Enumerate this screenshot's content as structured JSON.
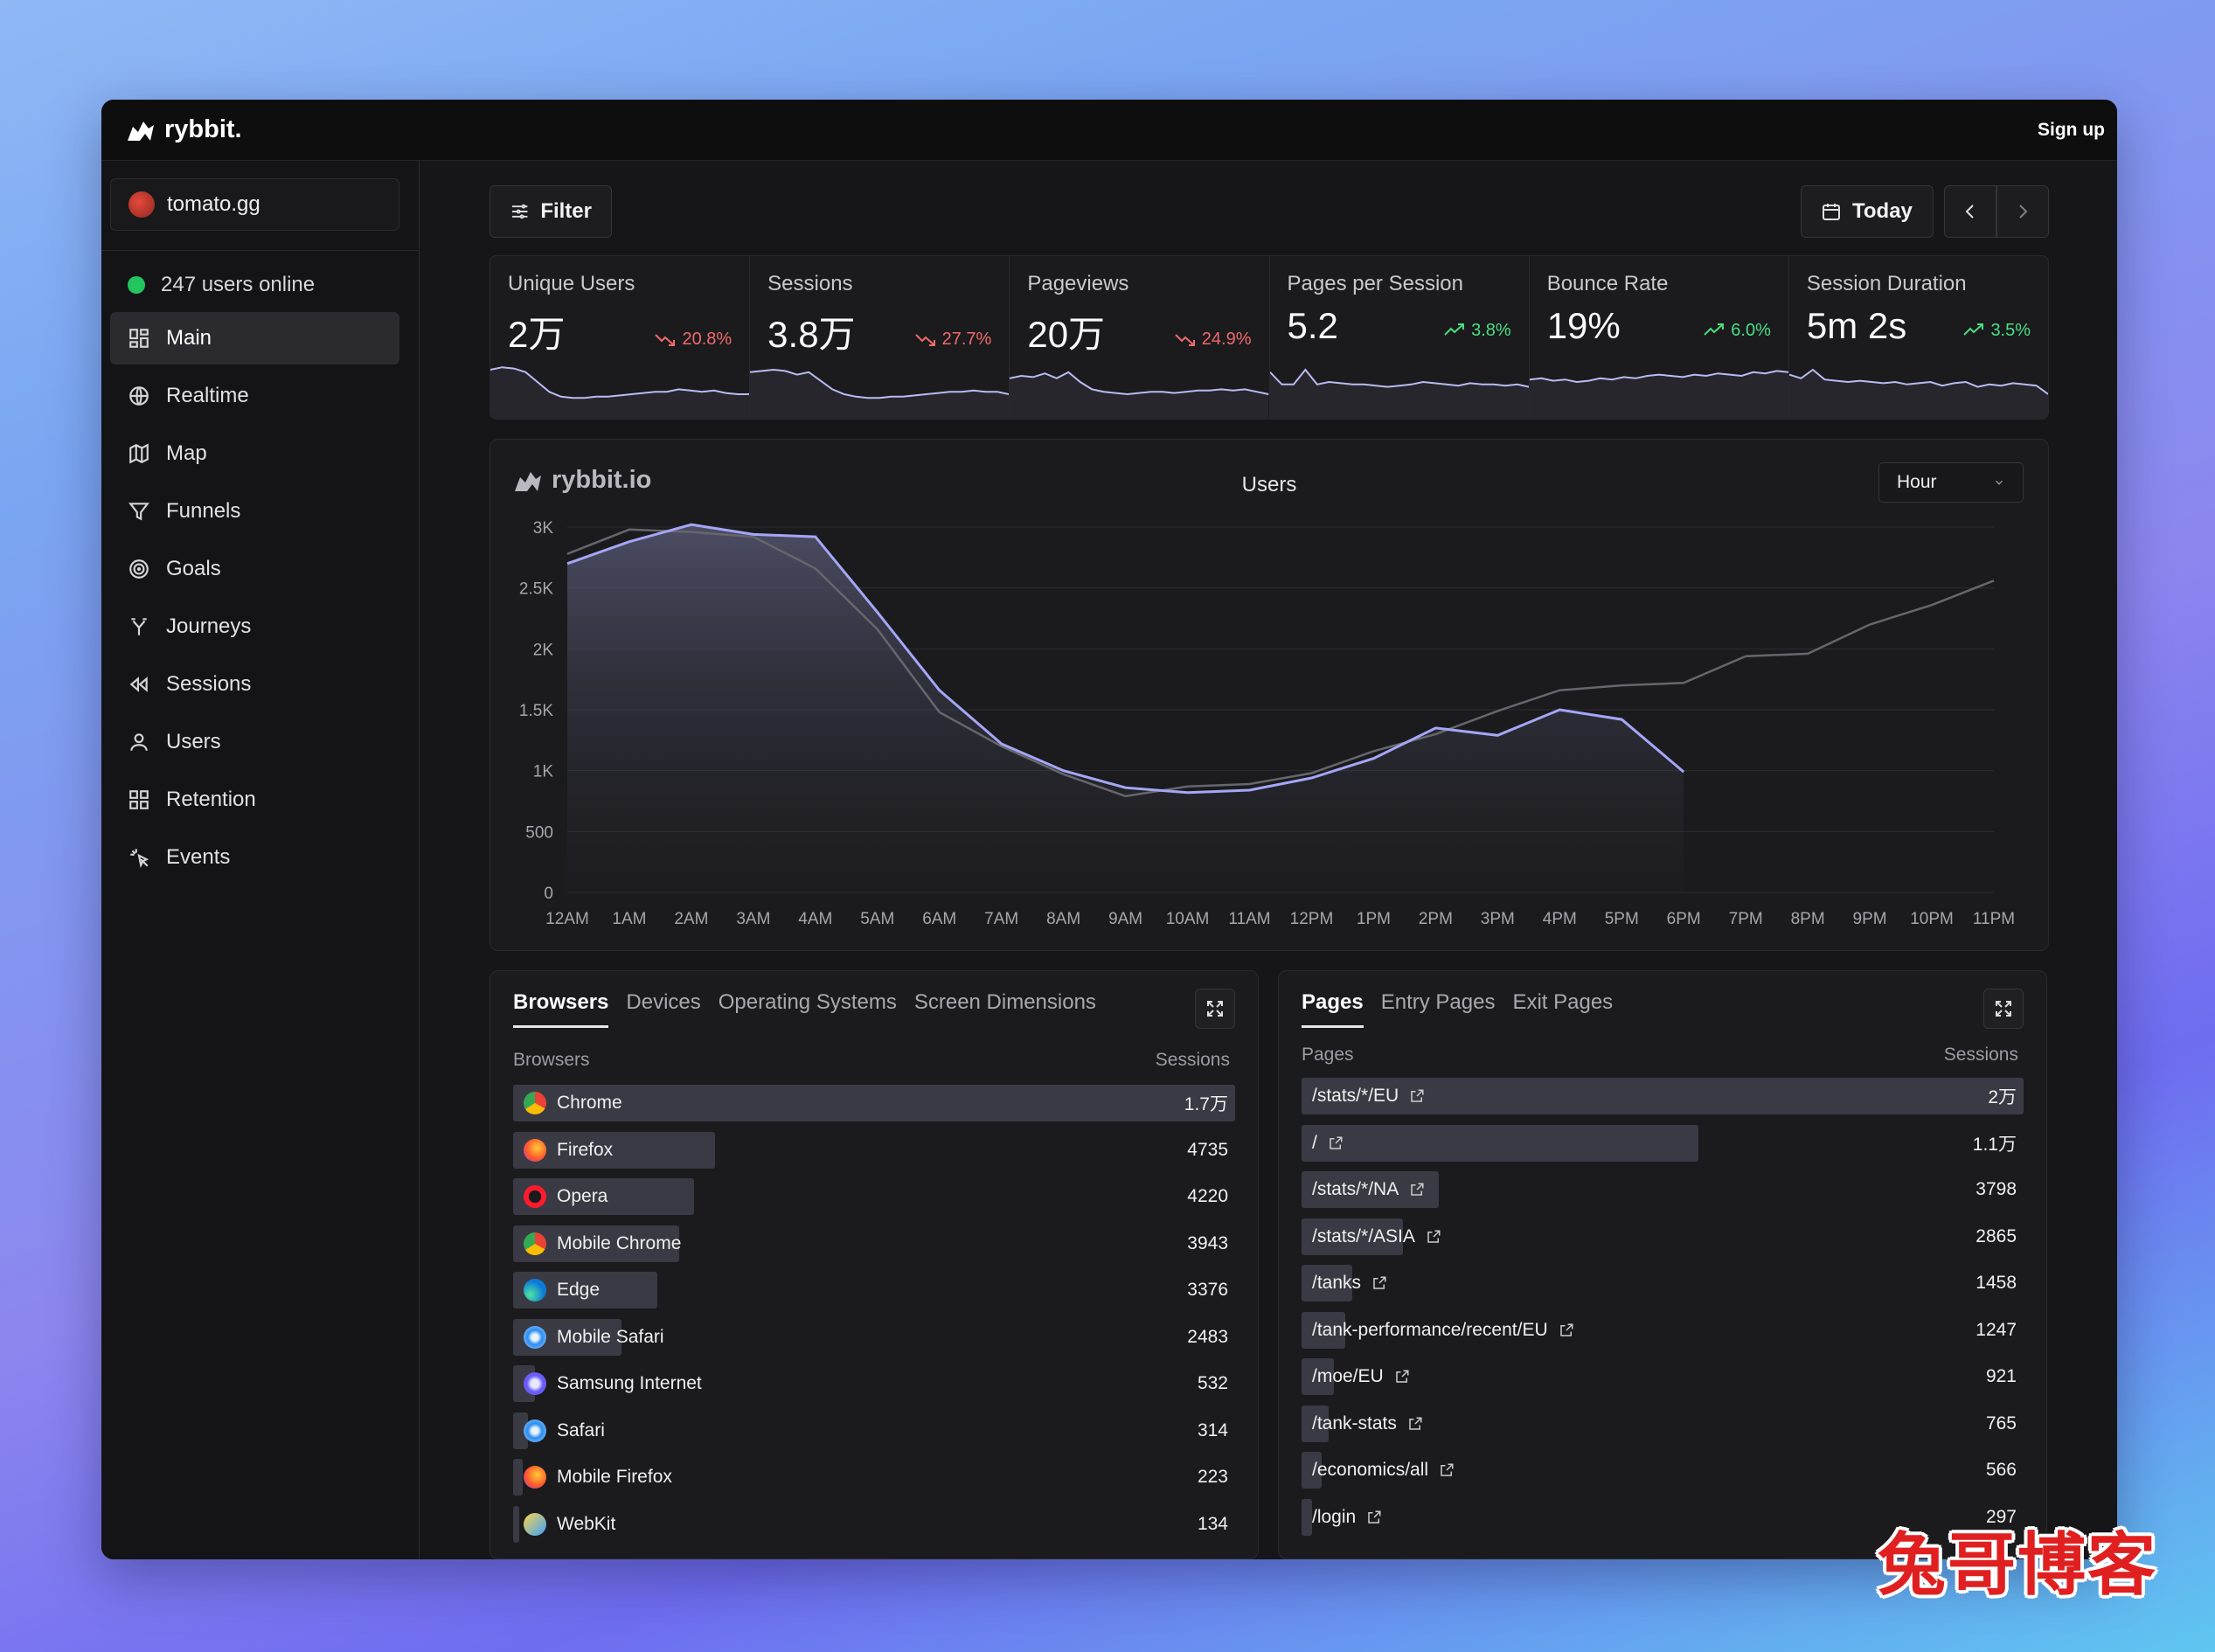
{
  "app": {
    "brand": "rybbit.",
    "signup": "Sign up"
  },
  "sidebar": {
    "site": "tomato.gg",
    "online": "247 users online",
    "items": [
      {
        "label": "Main",
        "icon": "grid-icon"
      },
      {
        "label": "Realtime",
        "icon": "globe-icon"
      },
      {
        "label": "Map",
        "icon": "map-icon"
      },
      {
        "label": "Funnels",
        "icon": "funnel-icon"
      },
      {
        "label": "Goals",
        "icon": "target-icon"
      },
      {
        "label": "Journeys",
        "icon": "split-icon"
      },
      {
        "label": "Sessions",
        "icon": "rewind-icon"
      },
      {
        "label": "Users",
        "icon": "user-icon"
      },
      {
        "label": "Retention",
        "icon": "grid-icon"
      },
      {
        "label": "Events",
        "icon": "sparkle-icon"
      }
    ]
  },
  "toolbar": {
    "filter": "Filter",
    "today": "Today"
  },
  "metrics": [
    {
      "label": "Unique Users",
      "value": "2万",
      "change": "20.8%",
      "direction": "down",
      "spark": [
        40,
        42,
        41,
        38,
        30,
        22,
        18,
        17,
        17,
        18,
        18,
        19,
        20,
        21,
        22,
        22,
        24,
        23,
        22,
        23,
        21,
        20,
        20
      ]
    },
    {
      "label": "Sessions",
      "value": "3.8万",
      "change": "27.7%",
      "direction": "down",
      "spark": [
        38,
        39,
        40,
        39,
        36,
        38,
        31,
        24,
        20,
        18,
        17,
        17,
        18,
        18,
        19,
        20,
        21,
        22,
        22,
        23,
        22,
        22,
        20
      ]
    },
    {
      "label": "Pageviews",
      "value": "20万",
      "change": "24.9%",
      "direction": "down",
      "spark": [
        33,
        35,
        34,
        37,
        33,
        38,
        30,
        24,
        22,
        21,
        20,
        21,
        22,
        22,
        21,
        22,
        23,
        23,
        24,
        23,
        24,
        22,
        20
      ]
    },
    {
      "label": "Pages per Session",
      "value": "5.2",
      "change": "3.8%",
      "direction": "up",
      "spark": [
        38,
        28,
        28,
        40,
        28,
        30,
        29,
        28,
        28,
        27,
        26,
        27,
        28,
        30,
        29,
        28,
        27,
        29,
        28,
        28,
        27,
        28,
        26
      ]
    },
    {
      "label": "Bounce Rate",
      "value": "19%",
      "change": "6.0%",
      "direction": "up",
      "spark": [
        32,
        33,
        31,
        32,
        30,
        31,
        33,
        32,
        34,
        33,
        35,
        36,
        35,
        34,
        36,
        35,
        37,
        36,
        35,
        38,
        37,
        39,
        38
      ]
    },
    {
      "label": "Session Duration",
      "value": "5m 2s",
      "change": "3.5%",
      "direction": "up",
      "spark": [
        36,
        33,
        40,
        32,
        31,
        30,
        31,
        30,
        29,
        30,
        28,
        29,
        30,
        27,
        29,
        30,
        26,
        28,
        27,
        29,
        28,
        27,
        20
      ]
    }
  ],
  "chart": {
    "brand": "rybbit.io",
    "title": "Users",
    "interval": "Hour"
  },
  "chart_data": {
    "type": "area",
    "title": "Users",
    "x": [
      "12AM",
      "1AM",
      "2AM",
      "3AM",
      "4AM",
      "5AM",
      "6AM",
      "7AM",
      "8AM",
      "9AM",
      "10AM",
      "11AM",
      "12PM",
      "1PM",
      "2PM",
      "3PM",
      "4PM",
      "5PM",
      "6PM",
      "7PM",
      "8PM",
      "9PM",
      "10PM",
      "11PM"
    ],
    "yticks": [
      "0",
      "500",
      "1K",
      "1.5K",
      "2K",
      "2.5K",
      "3K"
    ],
    "ylim": [
      0,
      3000
    ],
    "grid": true,
    "series": [
      {
        "values": [
          2700,
          2880,
          3020,
          2940,
          2920,
          2300,
          1660,
          1220,
          1000,
          860,
          820,
          840,
          940,
          1100,
          1350,
          1290,
          1500,
          1420,
          990,
          null,
          null,
          null,
          null,
          null
        ]
      },
      {
        "values": [
          2780,
          2980,
          2960,
          2920,
          2660,
          2160,
          1480,
          1200,
          970,
          790,
          870,
          890,
          980,
          1160,
          1300,
          1490,
          1660,
          1700,
          1720,
          1940,
          1960,
          2200,
          2360,
          2560
        ]
      }
    ]
  },
  "browsers": {
    "tabs": [
      "Browsers",
      "Devices",
      "Operating Systems",
      "Screen Dimensions"
    ],
    "col_left": "Browsers",
    "col_right": "Sessions",
    "rows": [
      {
        "label": "Chrome",
        "value": "1.7万",
        "pct": 100,
        "icon": "chrome-icon"
      },
      {
        "label": "Firefox",
        "value": "4735",
        "pct": 28,
        "icon": "firefox-icon"
      },
      {
        "label": "Opera",
        "value": "4220",
        "pct": 25,
        "icon": "opera-icon"
      },
      {
        "label": "Mobile Chrome",
        "value": "3943",
        "pct": 23,
        "icon": "chrome-icon"
      },
      {
        "label": "Edge",
        "value": "3376",
        "pct": 20,
        "icon": "edge-icon"
      },
      {
        "label": "Mobile Safari",
        "value": "2483",
        "pct": 15,
        "icon": "safari-icon"
      },
      {
        "label": "Samsung Internet",
        "value": "532",
        "pct": 3,
        "icon": "samsung-icon"
      },
      {
        "label": "Safari",
        "value": "314",
        "pct": 2,
        "icon": "safari-icon"
      },
      {
        "label": "Mobile Firefox",
        "value": "223",
        "pct": 1.3,
        "icon": "firefox-icon"
      },
      {
        "label": "WebKit",
        "value": "134",
        "pct": 0.8,
        "icon": "webkit-icon"
      }
    ]
  },
  "pages": {
    "tabs": [
      "Pages",
      "Entry Pages",
      "Exit Pages"
    ],
    "col_left": "Pages",
    "col_right": "Sessions",
    "rows": [
      {
        "label": "/stats/*/EU",
        "value": "2万",
        "pct": 100
      },
      {
        "label": "/",
        "value": "1.1万",
        "pct": 55
      },
      {
        "label": "/stats/*/NA",
        "value": "3798",
        "pct": 19
      },
      {
        "label": "/stats/*/ASIA",
        "value": "2865",
        "pct": 14
      },
      {
        "label": "/tanks",
        "value": "1458",
        "pct": 7
      },
      {
        "label": "/tank-performance/recent/EU",
        "value": "1247",
        "pct": 6
      },
      {
        "label": "/moe/EU",
        "value": "921",
        "pct": 4.5
      },
      {
        "label": "/tank-stats",
        "value": "765",
        "pct": 3.8
      },
      {
        "label": "/economics/all",
        "value": "566",
        "pct": 2.8
      },
      {
        "label": "/login",
        "value": "297",
        "pct": 1.5
      }
    ]
  },
  "watermark": "兔哥博客",
  "colors": {
    "accent": "#a5a6f6",
    "up": "#4ade80",
    "down": "#f06a6a",
    "online": "#22c55e"
  }
}
